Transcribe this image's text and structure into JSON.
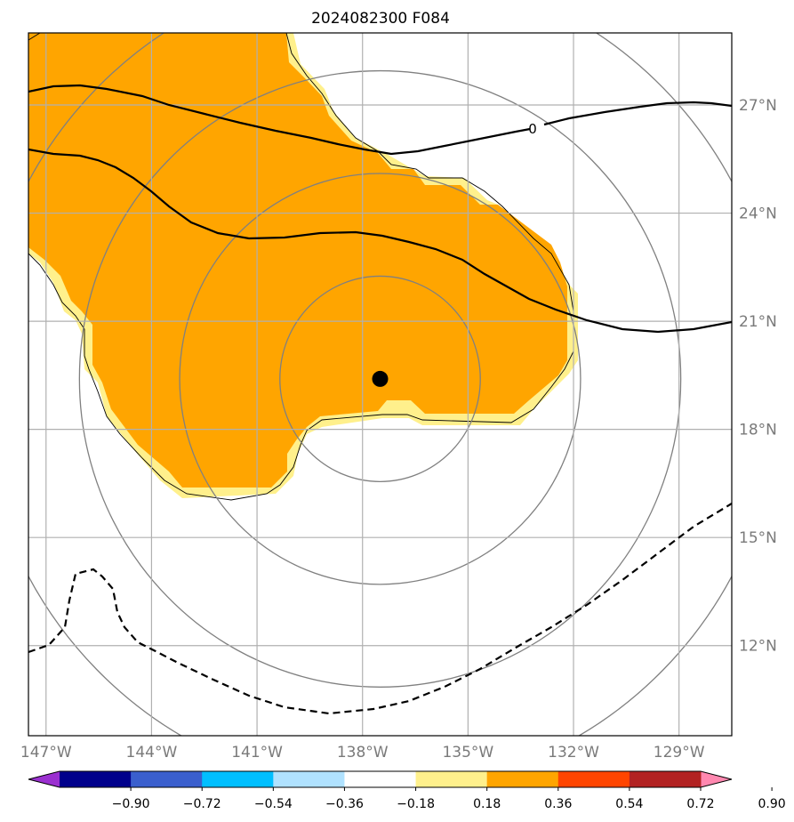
{
  "title": "2024082300 F084",
  "map": {
    "lon_range": [
      -147.5,
      -127.5
    ],
    "lat_range": [
      9.5,
      29.0
    ],
    "lon_ticks": [
      {
        "value": -147,
        "label": "147°W"
      },
      {
        "value": -144,
        "label": "144°W"
      },
      {
        "value": -141,
        "label": "141°W"
      },
      {
        "value": -138,
        "label": "138°W"
      },
      {
        "value": -135,
        "label": "135°W"
      },
      {
        "value": -132,
        "label": "132°W"
      },
      {
        "value": -129,
        "label": "129°W"
      }
    ],
    "lat_ticks": [
      {
        "value": 12,
        "label": "12°N"
      },
      {
        "value": 15,
        "label": "15°N"
      },
      {
        "value": 18,
        "label": "18°N"
      },
      {
        "value": 21,
        "label": "21°N"
      },
      {
        "value": 24,
        "label": "24°N"
      },
      {
        "value": 27,
        "label": "27°N"
      }
    ],
    "storm_center": {
      "lon": -137.5,
      "lat": 19.4
    },
    "range_rings_deg": [
      2.85,
      5.7,
      8.55,
      11.4
    ],
    "contour_label": "0",
    "colors": {
      "orange_fill": "#ffa500",
      "yellow_fill": "#fff08c",
      "ring": "#808080",
      "grid": "#b0b0b0",
      "contour": "#000000"
    }
  },
  "colorbar": {
    "ticks": [
      "−0.90",
      "−0.72",
      "−0.54",
      "−0.36",
      "−0.18",
      "0.18",
      "0.36",
      "0.54",
      "0.72",
      "0.90"
    ],
    "colors": [
      "#9b30d0",
      "#00008b",
      "#3a5fcd",
      "#00bfff",
      "#b0e2ff",
      "#ffffff",
      "#fff08c",
      "#ffa500",
      "#ff4500",
      "#b22222",
      "#ff88b0"
    ]
  }
}
